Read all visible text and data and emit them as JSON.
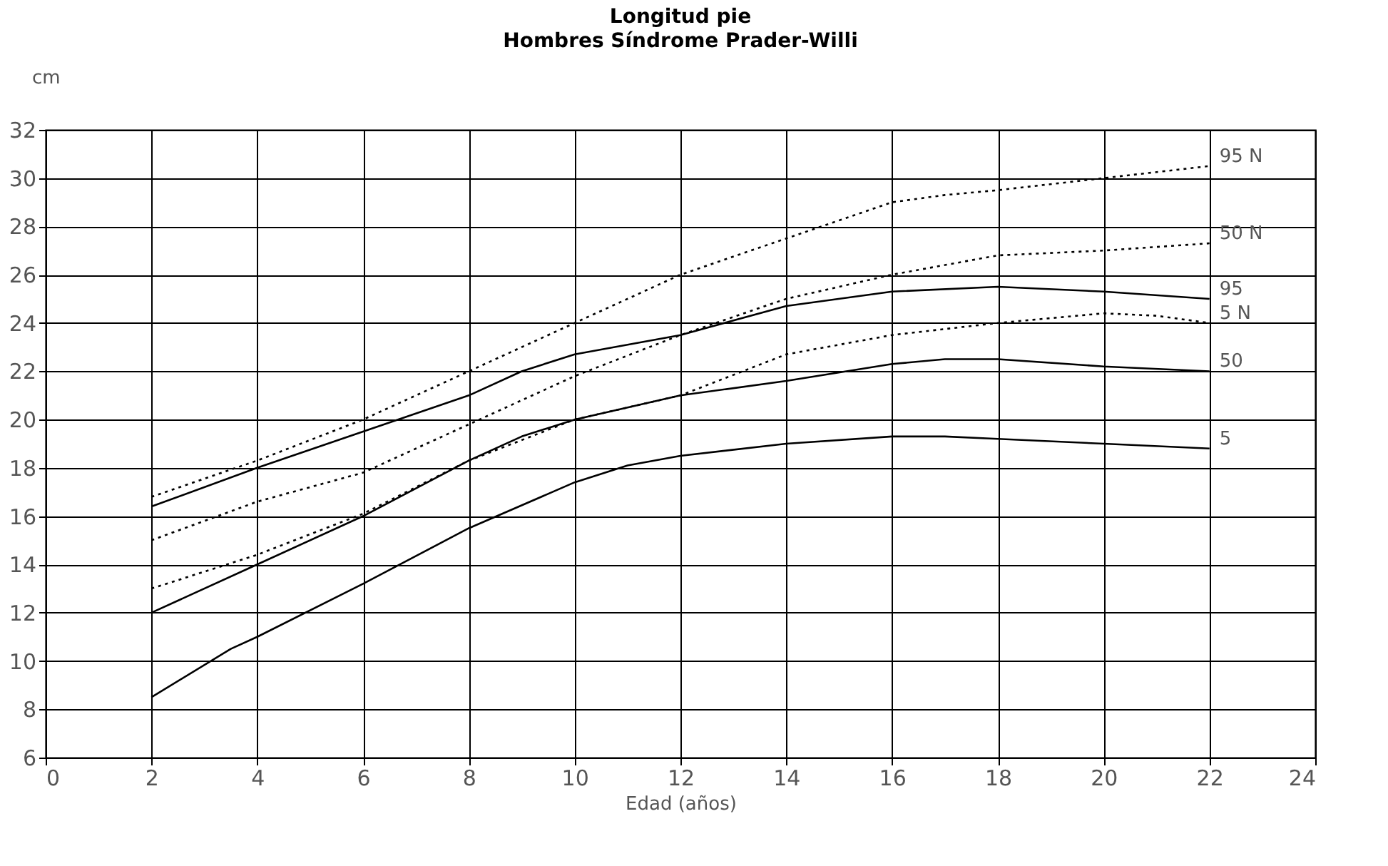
{
  "chart_data": {
    "type": "line",
    "title": "Longitud pie",
    "subtitle": "Hombres Síndrome Prader-Willi",
    "xlabel": "Edad (años)",
    "ylabel": "cm",
    "xlim": [
      0,
      24
    ],
    "xticks": [
      0,
      2,
      4,
      6,
      8,
      10,
      12,
      14,
      16,
      18,
      20,
      22,
      24
    ],
    "ylim": [
      6,
      32
    ],
    "yticks": [
      6,
      8,
      10,
      12,
      14,
      16,
      18,
      20,
      22,
      24,
      26,
      28,
      30,
      32
    ],
    "grid": true,
    "marker": "none",
    "series": [
      {
        "name": "95 N",
        "color": "#000000",
        "line_style": "dotted",
        "x": [
          2,
          4,
          6,
          8,
          10,
          12,
          14,
          16,
          17,
          18,
          20,
          22
        ],
        "values": [
          16.8,
          18.3,
          20,
          22,
          24,
          26,
          27.5,
          29,
          29.3,
          29.5,
          30,
          30.5
        ]
      },
      {
        "name": "50 N",
        "color": "#000000",
        "line_style": "dotted",
        "x": [
          2,
          4,
          6,
          8,
          10,
          12,
          14,
          16,
          18,
          20,
          22
        ],
        "values": [
          15,
          16.6,
          17.8,
          19.8,
          21.8,
          23.5,
          25,
          26,
          26.8,
          27,
          27.3
        ]
      },
      {
        "name": "95",
        "color": "#000000",
        "line_style": "solid",
        "x": [
          2,
          4,
          6,
          8,
          9,
          10,
          11,
          12,
          14,
          16,
          18,
          20,
          22
        ],
        "values": [
          16.4,
          18,
          19.5,
          21,
          22,
          22.7,
          23.1,
          23.5,
          24.7,
          25.3,
          25.5,
          25.3,
          25
        ]
      },
      {
        "name": "5 N",
        "color": "#000000",
        "line_style": "dotted",
        "x": [
          2,
          4,
          6,
          8,
          10,
          12,
          14,
          16,
          18,
          20,
          21,
          22
        ],
        "values": [
          13,
          14.4,
          16.1,
          18.3,
          20,
          21,
          22.7,
          23.5,
          24,
          24.4,
          24.3,
          24
        ]
      },
      {
        "name": "50",
        "color": "#000000",
        "line_style": "solid",
        "x": [
          2,
          4,
          6,
          8,
          9,
          10,
          12,
          14,
          16,
          17,
          18,
          20,
          22
        ],
        "values": [
          12,
          14,
          16,
          18.3,
          19.3,
          20,
          21,
          21.6,
          22.3,
          22.5,
          22.5,
          22.2,
          22
        ]
      },
      {
        "name": "5",
        "color": "#000000",
        "line_style": "solid",
        "x": [
          2,
          3.5,
          4,
          6,
          8,
          10,
          11,
          12,
          14,
          16,
          17,
          18,
          20,
          22
        ],
        "values": [
          8.5,
          10.5,
          11,
          13.2,
          15.5,
          17.4,
          18.1,
          18.5,
          19,
          19.3,
          19.3,
          19.2,
          19,
          18.8
        ]
      }
    ]
  }
}
